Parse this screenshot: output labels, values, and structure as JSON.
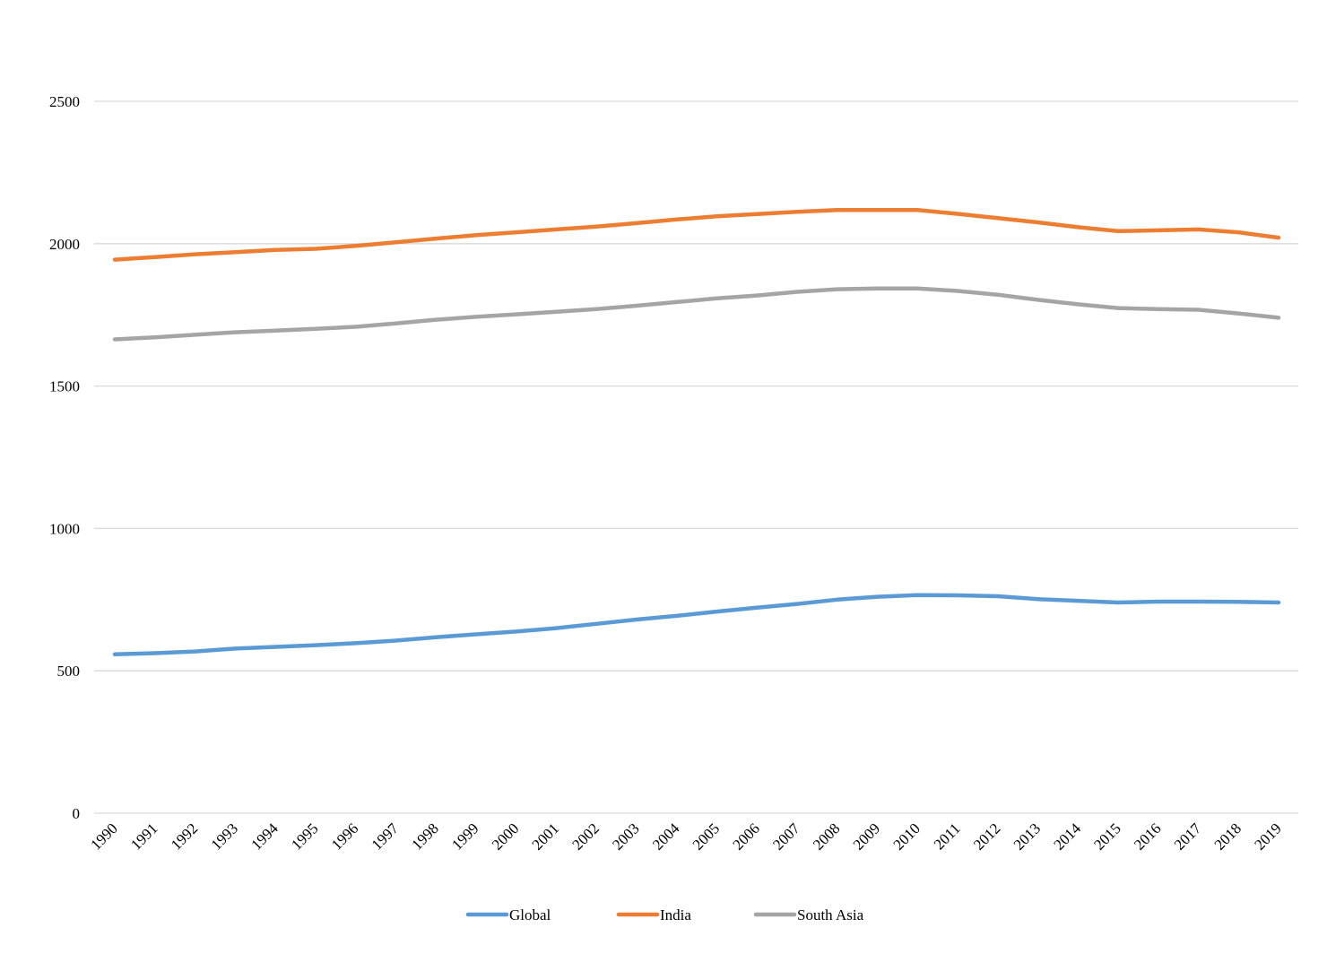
{
  "chart_data": {
    "type": "line",
    "title": "",
    "xlabel": "",
    "ylabel": "",
    "ylim": [
      0,
      2500
    ],
    "yticks": [
      0,
      500,
      1000,
      1500,
      2000,
      2500
    ],
    "grid": true,
    "legend_position": "bottom",
    "x": [
      "1990",
      "1991",
      "1992",
      "1993",
      "1994",
      "1995",
      "1996",
      "1997",
      "1998",
      "1999",
      "2000",
      "2001",
      "2002",
      "2003",
      "2004",
      "2005",
      "2006",
      "2007",
      "2008",
      "2009",
      "2010",
      "2011",
      "2012",
      "2013",
      "2014",
      "2015",
      "2016",
      "2017",
      "2018",
      "2019"
    ],
    "series": [
      {
        "name": "Global",
        "color": "#5b9bd5",
        "values": [
          558,
          562,
          568,
          578,
          584,
          590,
          597,
          606,
          618,
          628,
          638,
          650,
          665,
          680,
          693,
          708,
          722,
          735,
          750,
          760,
          766,
          765,
          762,
          752,
          746,
          740,
          743,
          743,
          742,
          740
        ]
      },
      {
        "name": "India",
        "color": "#ed7d31",
        "values": [
          1944,
          1953,
          1963,
          1970,
          1978,
          1982,
          1992,
          2005,
          2018,
          2030,
          2040,
          2050,
          2060,
          2072,
          2085,
          2096,
          2104,
          2112,
          2118,
          2118,
          2118,
          2105,
          2090,
          2075,
          2058,
          2044,
          2047,
          2050,
          2040,
          2021
        ]
      },
      {
        "name": "South Asia",
        "color": "#a5a5a5",
        "values": [
          1664,
          1671,
          1680,
          1689,
          1695,
          1701,
          1708,
          1720,
          1733,
          1743,
          1752,
          1761,
          1770,
          1782,
          1795,
          1808,
          1818,
          1831,
          1840,
          1843,
          1843,
          1834,
          1821,
          1803,
          1787,
          1774,
          1770,
          1768,
          1755,
          1740
        ]
      }
    ]
  }
}
